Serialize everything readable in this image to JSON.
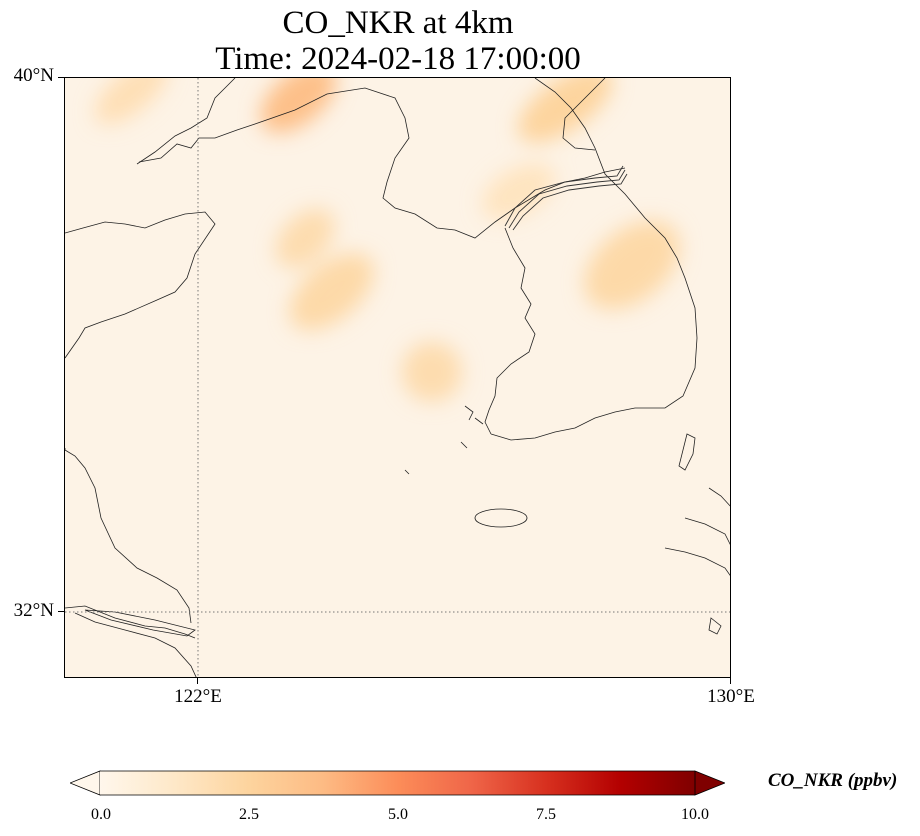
{
  "title": {
    "line1": "CO_NKR at 4km",
    "line2": "Time: 2024-02-18 17:00:00"
  },
  "axes": {
    "y_labels": [
      "40°N",
      "32°N"
    ],
    "x_labels": [
      "122°E",
      "130°E"
    ],
    "lat_range": [
      31.0,
      40.0
    ],
    "lon_range": [
      120.0,
      130.0
    ],
    "gridlines": "dotted at 122°E and 32°N"
  },
  "colorbar": {
    "label": "CO_NKR (ppbv)",
    "ticks": [
      "0.0",
      "2.5",
      "5.0",
      "7.5",
      "10.0"
    ],
    "range": [
      0,
      10
    ],
    "colormap": "OrRd",
    "extend": "both",
    "colors": [
      "#fff7ec",
      "#fee8c8",
      "#fdd49e",
      "#fdbb84",
      "#fc8d59",
      "#ef6548",
      "#d7301f",
      "#b30000",
      "#7f0000"
    ]
  },
  "map_data": {
    "variable": "CO_NKR",
    "level": "4km",
    "background_value_ppbv": 0.3,
    "features": "coastlines, country borders",
    "plumes": [
      {
        "area": "Bohai coast near 123.5°E 39.7°N",
        "value_ppbv": 3.5
      },
      {
        "area": "North Korea 127.5°E 39.6°N",
        "value_ppbv": 2.5
      },
      {
        "area": "Yellow Sea 123.6°E 37.6°N",
        "value_ppbv": 2.0
      },
      {
        "area": "Yellow Sea 124°E 36.8°N",
        "value_ppbv": 2.2
      },
      {
        "area": "Yellow Sea 125.5°E 35.6°N",
        "value_ppbv": 2.0
      },
      {
        "area": "Korea east 128.5°E 37.2°N",
        "value_ppbv": 2.2
      },
      {
        "area": "Korea north 126.8°E 38.3°N",
        "value_ppbv": 1.5
      },
      {
        "area": "Liaodong 121°E 39.8°N",
        "value_ppbv": 1.8
      }
    ]
  }
}
